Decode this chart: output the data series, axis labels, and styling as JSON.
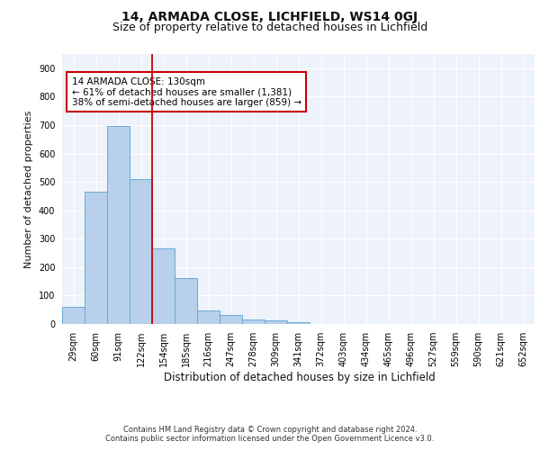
{
  "title1": "14, ARMADA CLOSE, LICHFIELD, WS14 0GJ",
  "title2": "Size of property relative to detached houses in Lichfield",
  "xlabel": "Distribution of detached houses by size in Lichfield",
  "ylabel": "Number of detached properties",
  "categories": [
    "29sqm",
    "60sqm",
    "91sqm",
    "122sqm",
    "154sqm",
    "185sqm",
    "216sqm",
    "247sqm",
    "278sqm",
    "309sqm",
    "341sqm",
    "372sqm",
    "403sqm",
    "434sqm",
    "465sqm",
    "496sqm",
    "527sqm",
    "559sqm",
    "590sqm",
    "621sqm",
    "652sqm"
  ],
  "values": [
    60,
    467,
    697,
    511,
    265,
    160,
    47,
    32,
    16,
    13,
    6,
    0,
    0,
    0,
    0,
    0,
    0,
    0,
    0,
    0,
    0
  ],
  "bar_color": "#b8d0ea",
  "bar_edgecolor": "#6aaad4",
  "bar_linewidth": 0.7,
  "vline_x": 3.5,
  "vline_color": "#cc0000",
  "vline_linewidth": 1.3,
  "annotation_text": "14 ARMADA CLOSE: 130sqm\n← 61% of detached houses are smaller (1,381)\n38% of semi-detached houses are larger (859) →",
  "annotation_box_color": "#ffffff",
  "annotation_box_edgecolor": "#cc0000",
  "annotation_fontsize": 7.5,
  "ylim": [
    0,
    950
  ],
  "yticks": [
    0,
    100,
    200,
    300,
    400,
    500,
    600,
    700,
    800,
    900
  ],
  "bg_color": "#edf2fb",
  "grid_color": "#ffffff",
  "title1_fontsize": 10,
  "title2_fontsize": 9,
  "xlabel_fontsize": 8.5,
  "ylabel_fontsize": 8,
  "tick_fontsize": 7,
  "footer_line1": "Contains HM Land Registry data © Crown copyright and database right 2024.",
  "footer_line2": "Contains public sector information licensed under the Open Government Licence v3.0."
}
